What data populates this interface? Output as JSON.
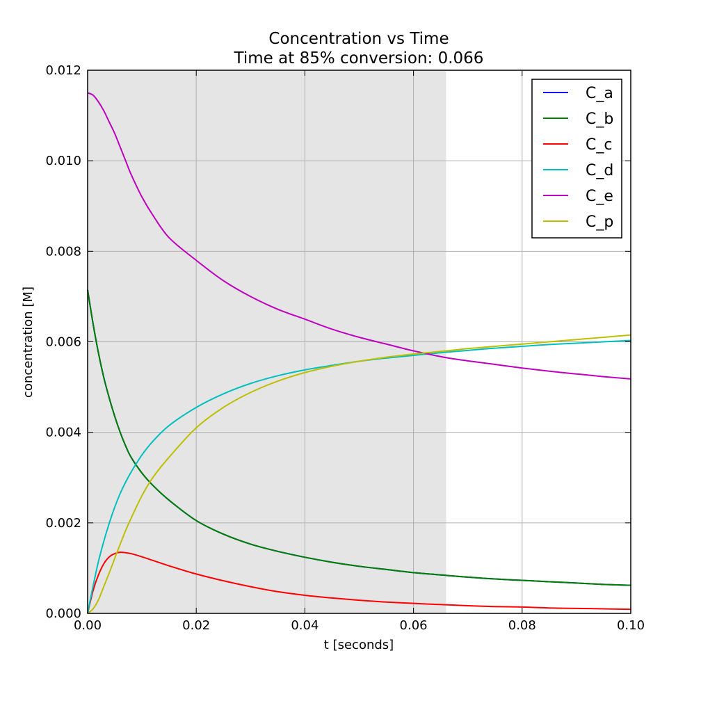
{
  "chart_data": {
    "type": "line",
    "title": "Concentration vs Time",
    "subtitle": "Time at 85% conversion:  0.066",
    "xlabel": "t [seconds]",
    "ylabel": "concentration [M]",
    "xlim": [
      0.0,
      0.1
    ],
    "ylim": [
      0.0,
      0.012
    ],
    "x_ticks": [
      0.0,
      0.02,
      0.04,
      0.06,
      0.08,
      0.1
    ],
    "x_tick_labels": [
      "0.00",
      "0.02",
      "0.04",
      "0.06",
      "0.08",
      "0.10"
    ],
    "y_ticks": [
      0.0,
      0.002,
      0.004,
      0.006,
      0.008,
      0.01,
      0.012
    ],
    "y_tick_labels": [
      "0.000",
      "0.002",
      "0.004",
      "0.006",
      "0.008",
      "0.010",
      "0.012"
    ],
    "grid": true,
    "legend_position": "top-right",
    "shaded_region": {
      "x_start": 0.0,
      "x_end": 0.066,
      "color": "#e5e5e5"
    },
    "x": [
      0,
      0.001,
      0.002,
      0.003,
      0.004,
      0.005,
      0.006,
      0.007,
      0.008,
      0.01,
      0.012,
      0.015,
      0.02,
      0.025,
      0.03,
      0.035,
      0.04,
      0.045,
      0.05,
      0.055,
      0.06,
      0.066,
      0.07,
      0.075,
      0.08,
      0.085,
      0.09,
      0.095,
      0.1
    ],
    "series": [
      {
        "name": "C_a",
        "color": "#0000ff",
        "values": [
          0.00715,
          0.0064,
          0.00575,
          0.0052,
          0.00475,
          0.00435,
          0.004,
          0.0037,
          0.00345,
          0.0031,
          0.00283,
          0.0025,
          0.00205,
          0.00175,
          0.00153,
          0.00137,
          0.00124,
          0.00113,
          0.00104,
          0.00097,
          0.0009,
          0.00084,
          0.0008,
          0.00076,
          0.00073,
          0.0007,
          0.00067,
          0.00064,
          0.00062
        ]
      },
      {
        "name": "C_b",
        "color": "#008000",
        "values": [
          0.00715,
          0.0064,
          0.00575,
          0.0052,
          0.00475,
          0.00435,
          0.004,
          0.0037,
          0.00345,
          0.0031,
          0.00283,
          0.0025,
          0.00205,
          0.00175,
          0.00153,
          0.00137,
          0.00124,
          0.00113,
          0.00104,
          0.00097,
          0.0009,
          0.00084,
          0.0008,
          0.00076,
          0.00073,
          0.0007,
          0.00067,
          0.00064,
          0.00062
        ]
      },
      {
        "name": "C_c",
        "color": "#ff0000",
        "values": [
          0.0,
          0.0005,
          0.00085,
          0.0011,
          0.00125,
          0.00132,
          0.00135,
          0.00134,
          0.00132,
          0.00125,
          0.00117,
          0.00105,
          0.00087,
          0.00072,
          0.00059,
          0.00048,
          0.0004,
          0.00034,
          0.00029,
          0.00025,
          0.00022,
          0.00019,
          0.00017,
          0.00015,
          0.00014,
          0.00012,
          0.00011,
          0.0001,
          9e-05
        ]
      },
      {
        "name": "C_d",
        "color": "#00bfbf",
        "values": [
          0.0,
          0.0006,
          0.00115,
          0.0016,
          0.002,
          0.00235,
          0.00265,
          0.0029,
          0.00312,
          0.0035,
          0.0038,
          0.00415,
          0.00455,
          0.00485,
          0.00508,
          0.00525,
          0.00538,
          0.00548,
          0.00557,
          0.00564,
          0.0057,
          0.00577,
          0.00581,
          0.00586,
          0.0059,
          0.00594,
          0.00597,
          0.006,
          0.00603
        ]
      },
      {
        "name": "C_e",
        "color": "#bf00bf",
        "values": [
          0.0115,
          0.01145,
          0.0113,
          0.0111,
          0.01085,
          0.0106,
          0.0103,
          0.01,
          0.0097,
          0.0092,
          0.0088,
          0.0083,
          0.0078,
          0.00735,
          0.007,
          0.00672,
          0.0065,
          0.00628,
          0.0061,
          0.00595,
          0.0058,
          0.00565,
          0.00558,
          0.0055,
          0.00542,
          0.00535,
          0.00529,
          0.00523,
          0.00518
        ]
      },
      {
        "name": "C_p",
        "color": "#bfbf00",
        "values": [
          0.0,
          0.0001,
          0.0003,
          0.0006,
          0.0009,
          0.00122,
          0.00153,
          0.00183,
          0.0021,
          0.0026,
          0.003,
          0.00345,
          0.0041,
          0.00455,
          0.00488,
          0.00513,
          0.00532,
          0.00546,
          0.00557,
          0.00566,
          0.00573,
          0.0058,
          0.00585,
          0.0059,
          0.00595,
          0.006,
          0.00605,
          0.0061,
          0.00615
        ]
      }
    ]
  }
}
